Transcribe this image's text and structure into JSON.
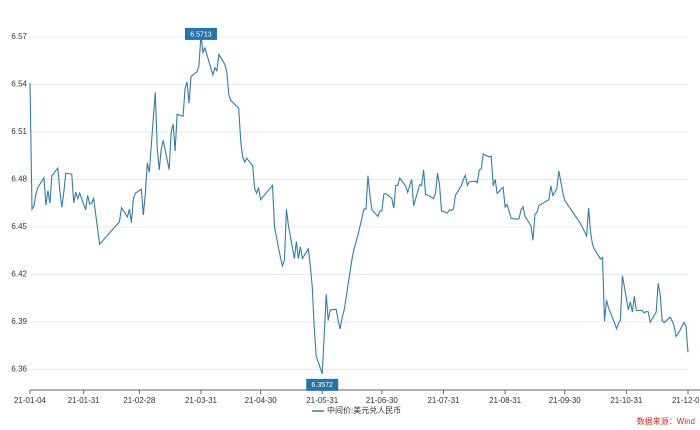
{
  "chart_data": {
    "type": "line",
    "x": [
      "21-01-04",
      "21-01-05",
      "21-01-06",
      "21-01-07",
      "21-01-08",
      "21-01-11",
      "21-01-12",
      "21-01-13",
      "21-01-14",
      "21-01-15",
      "21-01-18",
      "21-01-19",
      "21-01-20",
      "21-01-21",
      "21-01-22",
      "21-01-25",
      "21-01-26",
      "21-01-27",
      "21-01-28",
      "21-01-29",
      "21-02-01",
      "21-02-02",
      "21-02-03",
      "21-02-04",
      "21-02-05",
      "21-02-08",
      "21-02-18",
      "21-02-19",
      "21-02-22",
      "21-02-23",
      "21-02-24",
      "21-02-25",
      "21-02-26",
      "21-03-01",
      "21-03-02",
      "21-03-03",
      "21-03-04",
      "21-03-05",
      "21-03-08",
      "21-03-09",
      "21-03-10",
      "21-03-11",
      "21-03-12",
      "21-03-15",
      "21-03-16",
      "21-03-17",
      "21-03-18",
      "21-03-19",
      "21-03-22",
      "21-03-23",
      "21-03-24",
      "21-03-25",
      "21-03-26",
      "21-03-29",
      "21-03-30",
      "21-03-31",
      "21-04-01",
      "21-04-02",
      "21-04-06",
      "21-04-07",
      "21-04-08",
      "21-04-09",
      "21-04-12",
      "21-04-13",
      "21-04-14",
      "21-04-15",
      "21-04-19",
      "21-04-20",
      "21-04-21",
      "21-04-22",
      "21-04-23",
      "21-04-26",
      "21-04-27",
      "21-04-28",
      "21-04-29",
      "21-04-30",
      "21-05-06",
      "21-05-07",
      "21-05-10",
      "21-05-11",
      "21-05-12",
      "21-05-13",
      "21-05-14",
      "21-05-17",
      "21-05-18",
      "21-05-19",
      "21-05-20",
      "21-05-21",
      "21-05-24",
      "21-05-25",
      "21-05-26",
      "21-05-27",
      "21-05-28",
      "21-05-31",
      "21-06-01",
      "21-06-02",
      "21-06-03",
      "21-06-04",
      "21-06-07",
      "21-06-08",
      "21-06-09",
      "21-06-10",
      "21-06-11",
      "21-06-15",
      "21-06-16",
      "21-06-18",
      "21-06-21",
      "21-06-22",
      "21-06-23",
      "21-06-24",
      "21-06-25",
      "21-06-28",
      "21-06-29",
      "21-06-30",
      "21-07-01",
      "21-07-02",
      "21-07-05",
      "21-07-06",
      "21-07-07",
      "21-07-08",
      "21-07-09",
      "21-07-12",
      "21-07-13",
      "21-07-14",
      "21-07-15",
      "21-07-16",
      "21-07-19",
      "21-07-20",
      "21-07-21",
      "21-07-22",
      "21-07-23",
      "21-07-26",
      "21-07-27",
      "21-07-28",
      "21-07-29",
      "21-07-30",
      "21-08-02",
      "21-08-03",
      "21-08-04",
      "21-08-05",
      "21-08-06",
      "21-08-09",
      "21-08-10",
      "21-08-11",
      "21-08-12",
      "21-08-13",
      "21-08-16",
      "21-08-17",
      "21-08-18",
      "21-08-19",
      "21-08-20",
      "21-08-23",
      "21-08-24",
      "21-08-25",
      "21-08-26",
      "21-08-27",
      "21-08-30",
      "21-08-31",
      "21-09-01",
      "21-09-02",
      "21-09-03",
      "21-09-06",
      "21-09-07",
      "21-09-08",
      "21-09-09",
      "21-09-10",
      "21-09-13",
      "21-09-14",
      "21-09-15",
      "21-09-16",
      "21-09-17",
      "21-09-22",
      "21-09-23",
      "21-09-24",
      "21-09-26",
      "21-09-27",
      "21-09-28",
      "21-09-29",
      "21-09-30",
      "21-10-08",
      "21-10-11",
      "21-10-12",
      "21-10-13",
      "21-10-14",
      "21-10-15",
      "21-10-18",
      "21-10-19",
      "21-10-20",
      "21-10-21",
      "21-10-22",
      "21-10-25",
      "21-10-26",
      "21-10-27",
      "21-10-28",
      "21-10-29",
      "21-11-01",
      "21-11-02",
      "21-11-03",
      "21-11-04",
      "21-11-05",
      "21-11-08",
      "21-11-09",
      "21-11-10",
      "21-11-11",
      "21-11-12",
      "21-11-15",
      "21-11-16",
      "21-11-17",
      "21-11-18",
      "21-11-19",
      "21-11-22",
      "21-11-23",
      "21-11-24",
      "21-11-25",
      "21-11-26",
      "21-11-29",
      "21-11-30",
      "21-12-01"
    ],
    "series": [
      {
        "name": "中间价:美元兑人民币",
        "color": "#2e7fab",
        "values": [
          6.5408,
          6.4612,
          6.4633,
          6.4709,
          6.475,
          6.4811,
          6.4638,
          6.473,
          6.465,
          6.4823,
          6.4872,
          6.4731,
          6.4625,
          6.472,
          6.484,
          6.4834,
          6.4652,
          6.472,
          6.468,
          6.4713,
          6.4608,
          6.47,
          6.4645,
          6.4649,
          6.468,
          6.4391,
          6.4533,
          6.4622,
          6.4563,
          6.4612,
          6.4528,
          6.4678,
          6.4713,
          6.4739,
          6.4575,
          6.4708,
          6.4905,
          6.4845,
          6.535,
          6.5,
          6.486,
          6.499,
          6.5048,
          6.4862,
          6.5098,
          6.515,
          6.498,
          6.5211,
          6.52,
          6.5374,
          6.5417,
          6.5282,
          6.545,
          6.548,
          6.552,
          6.5713,
          6.5602,
          6.5631,
          6.546,
          6.5506,
          6.5487,
          6.559,
          6.5527,
          6.5477,
          6.5337,
          6.53,
          6.525,
          6.5041,
          6.4941,
          6.491,
          6.4934,
          6.4887,
          6.4744,
          6.4713,
          6.4749,
          6.4672,
          6.4763,
          6.45,
          6.4306,
          6.4254,
          6.429,
          6.4612,
          6.4508,
          6.43,
          6.4408,
          6.43,
          6.4374,
          6.43,
          6.4362,
          6.4254,
          6.412,
          6.3858,
          6.3682,
          6.3572,
          6.3816,
          6.4075,
          6.3909,
          6.3976,
          6.398,
          6.3909,
          6.3856,
          6.3927,
          6.3972,
          6.4298,
          6.4361,
          6.445,
          6.4613,
          6.4613,
          6.4824,
          6.47,
          6.4609,
          6.4567,
          6.4601,
          6.4601,
          6.4709,
          6.471,
          6.468,
          6.4619,
          6.4762,
          6.4762,
          6.4809,
          6.4757,
          6.4719,
          6.4762,
          6.4799,
          6.4634,
          6.4767,
          6.4762,
          6.486,
          6.4704,
          6.4702,
          6.4679,
          6.4713,
          6.484,
          6.4766,
          6.4602,
          6.4588,
          6.4608,
          6.4604,
          6.4613,
          6.47,
          6.4762,
          6.4799,
          6.4827,
          6.4763,
          6.4785,
          6.4789,
          6.478,
          6.486,
          6.4868,
          6.4961,
          6.4942,
          6.4948,
          6.476,
          6.48,
          6.4712,
          6.4751,
          6.4626,
          6.4641,
          6.46,
          6.4555,
          6.4549,
          6.4552,
          6.4609,
          6.4629,
          6.4567,
          6.4508,
          6.4416,
          6.4579,
          6.4591,
          6.4635,
          6.4672,
          6.476,
          6.4699,
          6.4741,
          6.4854,
          6.4788,
          6.4718,
          6.4668,
          6.452,
          6.4443,
          6.462,
          6.4465,
          6.4386,
          6.4358,
          6.4298,
          6.4306,
          6.3905,
          6.4037,
          6.399,
          6.3895,
          6.3857,
          6.389,
          6.3912,
          6.4192,
          6.3976,
          6.4027,
          6.3962,
          6.4062,
          6.3973,
          6.3972,
          6.3956,
          6.3966,
          6.3964,
          6.3898,
          6.3962,
          6.4144,
          6.4074,
          6.3908,
          6.3896,
          6.393,
          6.3907,
          6.3876,
          6.3809,
          6.3825,
          6.3897,
          6.3872,
          6.3708
        ]
      }
    ],
    "xlim": [
      "21-01-04",
      "21-12-01"
    ],
    "xticks": [
      "21-01-04",
      "21-01-31",
      "21-02-28",
      "21-03-31",
      "21-04-30",
      "21-05-31",
      "21-06-30",
      "21-07-31",
      "21-08-31",
      "21-09-30",
      "21-10-31",
      "21-12-01"
    ],
    "ylim": [
      6.347,
      6.582
    ],
    "yticks": [
      6.36,
      6.39,
      6.42,
      6.45,
      6.48,
      6.51,
      6.54,
      6.57
    ],
    "grid": true,
    "annotations": [
      {
        "label": "6.5713",
        "x": "21-03-31",
        "y": 6.5713
      },
      {
        "label": "6.3572",
        "x": "21-05-31",
        "y": 6.3572
      }
    ],
    "source": "数据来源：Wind"
  }
}
